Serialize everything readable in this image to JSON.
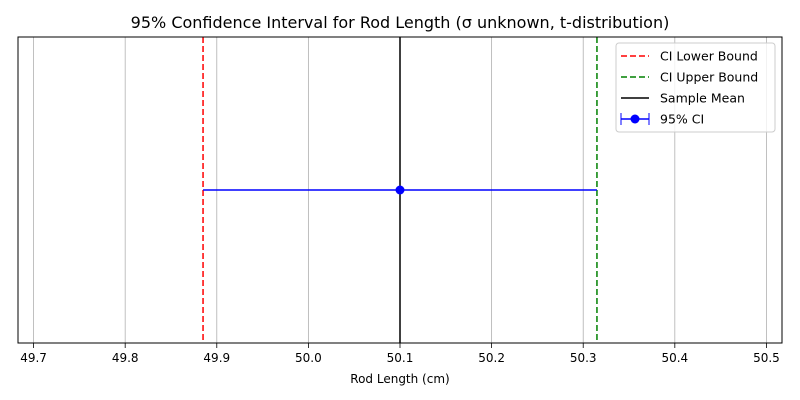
{
  "chart_data": {
    "type": "errorbar",
    "title": "95% Confidence Interval for Rod Length (σ unknown, t-distribution)",
    "xlabel": "Rod Length (cm)",
    "ylabel": "",
    "xlim": [
      49.683,
      50.517
    ],
    "x_ticks": [
      "49.7",
      "49.8",
      "49.9",
      "50.0",
      "50.1",
      "50.2",
      "50.3",
      "50.4",
      "50.5"
    ],
    "x_tick_values": [
      49.7,
      49.8,
      49.9,
      50.0,
      50.1,
      50.2,
      50.3,
      50.4,
      50.5
    ],
    "grid": "x",
    "sample_mean": 50.1,
    "ci_lower": 49.885,
    "ci_upper": 50.315,
    "legend_position": "upper right",
    "legend": [
      {
        "label": "CI Lower Bound",
        "color": "#ff0000",
        "style": "dashed"
      },
      {
        "label": "CI Upper Bound",
        "color": "#008000",
        "style": "dashed"
      },
      {
        "label": "Sample Mean",
        "color": "#000000",
        "style": "solid"
      },
      {
        "label": "95% CI",
        "color": "#0000ff",
        "style": "errorbar"
      }
    ]
  }
}
